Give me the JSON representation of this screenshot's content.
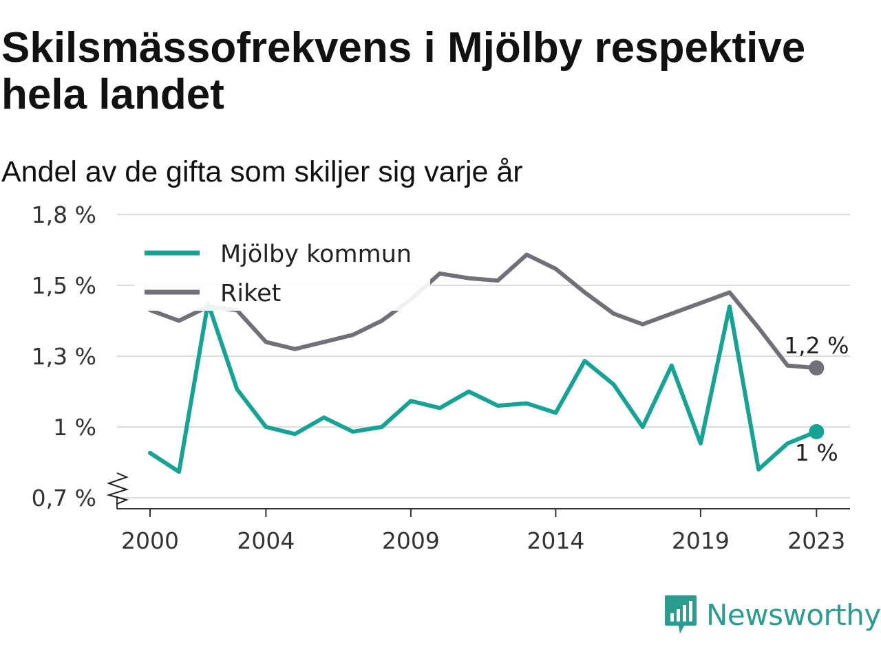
{
  "title": "Skilsmässofrekvens i Mjölby respektive hela landet",
  "subtitle": "Andel av de gifta som skiljer sig varje år",
  "brand": {
    "name": "Newsworthy",
    "icon": "newsworthy-logo-icon",
    "color": "#2a9d8f"
  },
  "chart_data": {
    "type": "line",
    "title": "Skilsmässofrekvens i Mjölby respektive hela landet",
    "subtitle": "Andel av de gifta som skiljer sig varje år",
    "x": [
      2000,
      2001,
      2002,
      2003,
      2004,
      2005,
      2006,
      2007,
      2008,
      2009,
      2010,
      2011,
      2012,
      2013,
      2014,
      2015,
      2016,
      2017,
      2018,
      2019,
      2020,
      2021,
      2022,
      2023
    ],
    "x_ticks": [
      2000,
      2004,
      2009,
      2014,
      2019,
      2023
    ],
    "x_tick_labels": [
      "2000",
      "2004",
      "2009",
      "2014",
      "2019",
      "2023"
    ],
    "y_ticks": [
      0.7,
      1.0,
      1.3,
      1.5,
      1.8
    ],
    "y_tick_labels": [
      "0,7 %",
      "1 %",
      "1,3 %",
      "1,5 %",
      "1,8 %"
    ],
    "ylim": [
      0.7,
      1.8
    ],
    "y_axis_break": true,
    "grid": true,
    "legend": "top-left",
    "series": [
      {
        "name": "Mjölby kommun",
        "color": "#14a394",
        "values": [
          0.89,
          0.81,
          1.45,
          1.16,
          1.0,
          0.97,
          1.04,
          0.98,
          1.0,
          1.11,
          1.08,
          1.15,
          1.09,
          1.1,
          1.06,
          1.28,
          1.18,
          1.0,
          1.26,
          0.93,
          1.44,
          0.82,
          0.93,
          0.98
        ],
        "end_label": "1 %"
      },
      {
        "name": "Riket",
        "color": "#707078",
        "values": [
          1.43,
          1.4,
          1.44,
          1.43,
          1.34,
          1.32,
          1.34,
          1.36,
          1.4,
          1.46,
          1.55,
          1.53,
          1.52,
          1.63,
          1.57,
          1.48,
          1.42,
          1.39,
          1.42,
          1.45,
          1.48,
          1.38,
          1.26,
          1.25
        ],
        "end_label": "1,2 %"
      }
    ]
  }
}
